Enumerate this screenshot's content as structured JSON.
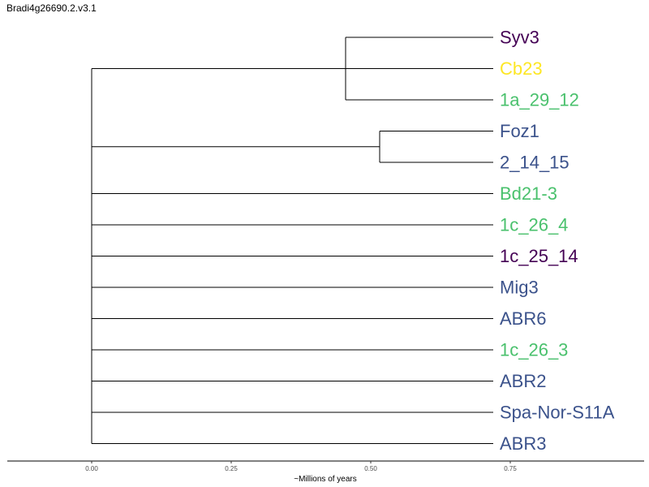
{
  "page_title": "Bradi4g26690.2.v3.1",
  "tree": {
    "tips": [
      {
        "label": "Syv3",
        "color": "#440154"
      },
      {
        "label": "Cb23",
        "color": "#FDE725"
      },
      {
        "label": "1a_29_12",
        "color": "#4AC16D"
      },
      {
        "label": "Foz1",
        "color": "#3B528B"
      },
      {
        "label": "2_14_15",
        "color": "#3B528B"
      },
      {
        "label": "Bd21-3",
        "color": "#4AC16D"
      },
      {
        "label": "1c_26_4",
        "color": "#4AC16D"
      },
      {
        "label": "1c_25_14",
        "color": "#440154"
      },
      {
        "label": "Mig3",
        "color": "#3B528B"
      },
      {
        "label": "ABR6",
        "color": "#3B528B"
      },
      {
        "label": "1c_26_3",
        "color": "#4AC16D"
      },
      {
        "label": "ABR2",
        "color": "#3B528B"
      },
      {
        "label": "Spa-Nor-S11A",
        "color": "#3B528B"
      },
      {
        "label": "ABR3",
        "color": "#3B528B"
      }
    ],
    "clades": [
      {
        "tips": [
          0,
          1,
          2
        ],
        "node_depth": 0.45,
        "inner": {
          "tips": [
            1
          ],
          "note": "Cb23 joins at root-level node of clade"
        }
      },
      {
        "tips": [
          3,
          4
        ],
        "node_depth": 0.51
      }
    ],
    "tip_depth": 0.725,
    "root_depth": 0.0
  },
  "x_axis": {
    "title": "~Millions of years",
    "ticks": [
      {
        "value": 0.0,
        "label": "0.00"
      },
      {
        "value": 0.25,
        "label": "0.25"
      },
      {
        "value": 0.5,
        "label": "0.50"
      },
      {
        "value": 0.75,
        "label": "0.75"
      }
    ],
    "range": [
      -0.15,
      0.99
    ]
  }
}
